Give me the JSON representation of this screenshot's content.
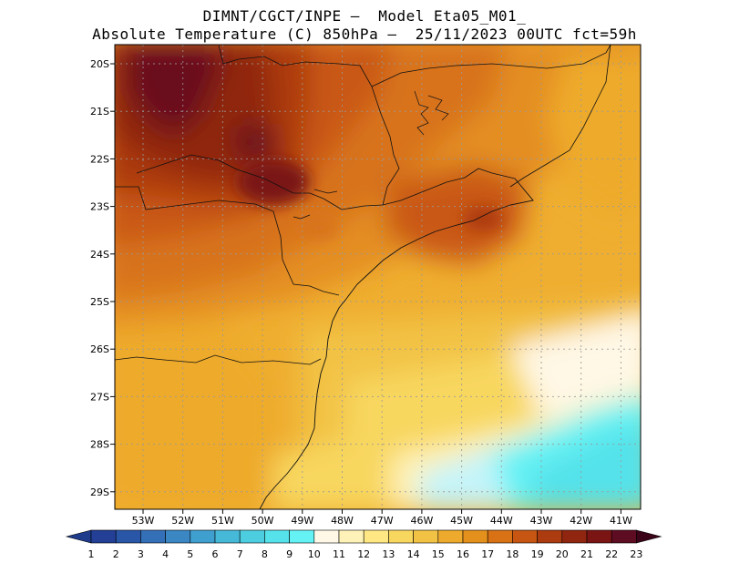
{
  "title": {
    "line1": "DIMNT/CGCT/INPE –  Model Eta05_M01_",
    "line2": "Absolute Temperature (C) 850hPa –  25/11/2023 00UTC fct=59h"
  },
  "map": {
    "lat_labels": [
      "20S",
      "21S",
      "22S",
      "23S",
      "24S",
      "25S",
      "26S",
      "27S",
      "28S",
      "29S"
    ],
    "lon_labels": [
      "53W",
      "52W",
      "51W",
      "50W",
      "49W",
      "48W",
      "47W",
      "46W",
      "45W",
      "44W",
      "43W",
      "42W",
      "41W"
    ],
    "lat_range": [
      -29.45,
      -19.9
    ],
    "lon_range": [
      -53.9,
      -40.5
    ]
  },
  "colorbar": {
    "labels": [
      "1",
      "2",
      "3",
      "4",
      "5",
      "6",
      "7",
      "8",
      "9",
      "10",
      "11",
      "12",
      "13",
      "14",
      "15",
      "16",
      "17",
      "18",
      "19",
      "20",
      "21",
      "22",
      "23"
    ],
    "colors": [
      "#1f3b8c",
      "#233f96",
      "#2a56a8",
      "#3470b8",
      "#3a87c4",
      "#3f9fcf",
      "#46b8d8",
      "#4dcee0",
      "#55e2ea",
      "#65f2f4",
      "#fff8e6",
      "#fff2b8",
      "#ffe784",
      "#f8d75e",
      "#f2c244",
      "#eeaa2c",
      "#e4901c",
      "#d87214",
      "#c65612",
      "#ad3b10",
      "#902510",
      "#7a1514",
      "#5e0c22",
      "#3c0418"
    ]
  }
}
